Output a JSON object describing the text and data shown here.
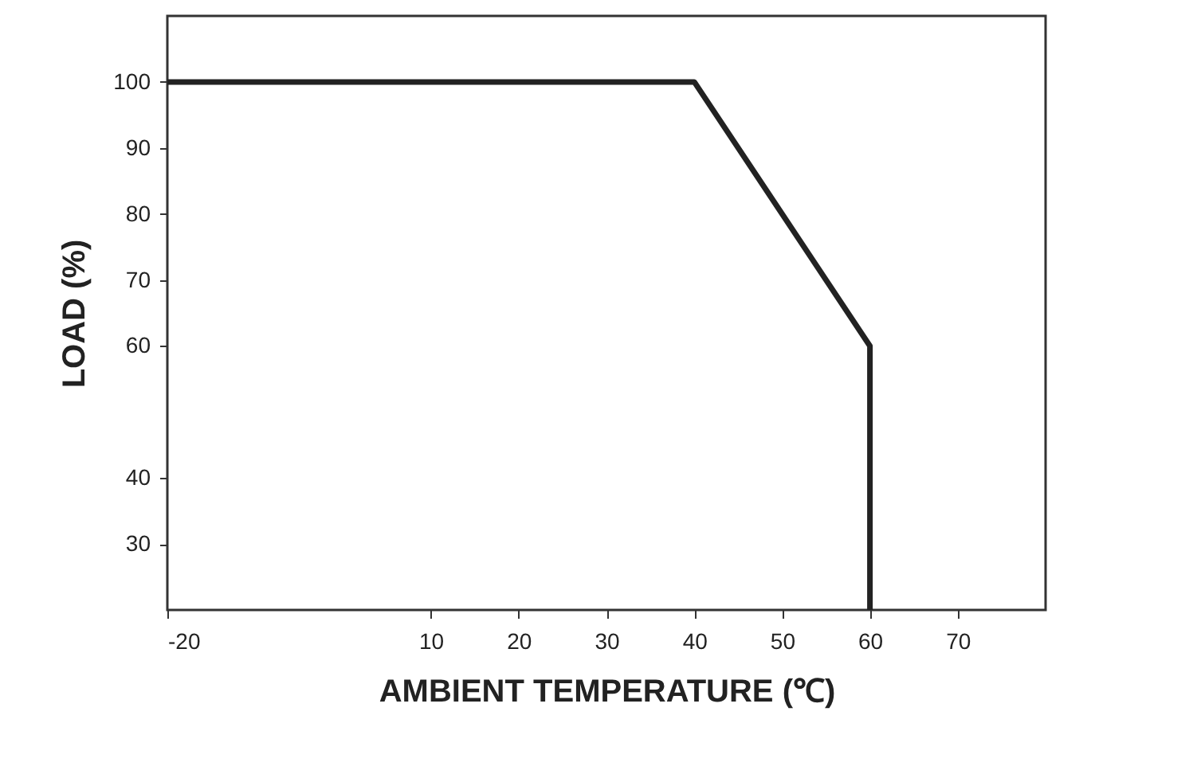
{
  "chart_data": {
    "type": "line",
    "xlabel": "AMBIENT TEMPERATURE (℃)",
    "ylabel": "LOAD (%)",
    "x": [
      -20,
      40,
      60,
      60
    ],
    "series": [
      {
        "color": "#222222",
        "values": [
          100,
          100,
          60,
          20
        ]
      }
    ],
    "xlim": [
      -20,
      80
    ],
    "xticks": [
      -20,
      10,
      20,
      30,
      40,
      50,
      60,
      70
    ],
    "ylim": [
      20,
      110
    ],
    "yticks": [
      30,
      40,
      60,
      70,
      80,
      90,
      100
    ],
    "grid": false,
    "marker": "none",
    "line_style": "solid"
  }
}
